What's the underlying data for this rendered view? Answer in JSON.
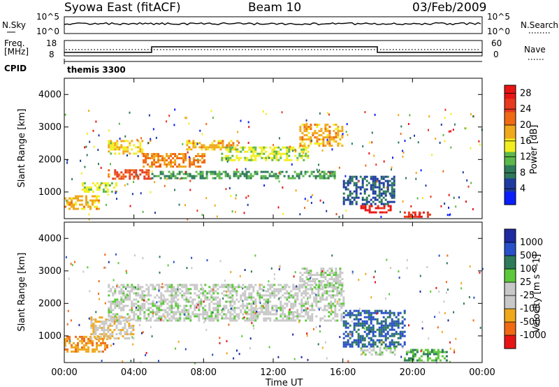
{
  "header": {
    "station": "Syowa East (fitACF)",
    "beam": "Beam 10",
    "date": "03/Feb/2009"
  },
  "noise_panel": {
    "left_label": "N.Sky",
    "right_label": "N.Search",
    "left_ticks": [
      "10^5",
      "10^0"
    ],
    "right_ticks": [
      "10^5",
      "10^0"
    ]
  },
  "freq_panel": {
    "left_label_1": "Freq.",
    "left_label_2": "[MHz]",
    "right_label": "Nave",
    "left_ticks": [
      "18",
      "8"
    ],
    "right_ticks": [
      "60",
      "0"
    ]
  },
  "cpid_panel": {
    "label": "CPID",
    "value": "themis 3300"
  },
  "colors": {
    "power": [
      "#0a1eff",
      "#1e3c9f",
      "#2e7a5a",
      "#5cb84a",
      "#f2ee1e",
      "#f0a81c",
      "#f06a14",
      "#e83a1e",
      "#e81414"
    ],
    "velocity": [
      "#e81414",
      "#f06a14",
      "#f0a81c",
      "#c8c8c8",
      "#c8c8c8",
      "#5cc83a",
      "#2e7a5a",
      "#2850c8",
      "#1e2aa0"
    ]
  },
  "chart_data": [
    {
      "type": "heatmap",
      "title": "",
      "xlabel": "Time UT",
      "ylabel": "Slant Range [km]",
      "xlim": [
        0,
        24
      ],
      "ylim": [
        180,
        4500
      ],
      "xticklabels": [
        "00:00",
        "04:00",
        "08:00",
        "12:00",
        "16:00",
        "20:00",
        "00:00"
      ],
      "yticks": [
        1000,
        2000,
        3000,
        4000
      ],
      "colorbar": {
        "label": "Power [dB]",
        "ticks": [
          "4",
          "8",
          "12",
          "16",
          "20",
          "24",
          "28"
        ],
        "range": [
          0,
          30
        ]
      },
      "echo_bands": [
        {
          "t0": 0.0,
          "t1": 2.0,
          "r0": 500,
          "r1": 900,
          "level": 18
        },
        {
          "t0": 1.0,
          "t1": 3.0,
          "r0": 1000,
          "r1": 1300,
          "level": 14
        },
        {
          "t0": 2.5,
          "t1": 5.0,
          "r0": 1400,
          "r1": 1700,
          "level": 24
        },
        {
          "t0": 2.5,
          "t1": 4.5,
          "r0": 2200,
          "r1": 2600,
          "level": 16
        },
        {
          "t0": 4.5,
          "t1": 8.0,
          "r0": 1800,
          "r1": 2200,
          "level": 20
        },
        {
          "t0": 5.0,
          "t1": 15.5,
          "r0": 1450,
          "r1": 1650,
          "level": 10
        },
        {
          "t0": 7.0,
          "t1": 10.0,
          "r0": 2300,
          "r1": 2600,
          "level": 18
        },
        {
          "t0": 9.0,
          "t1": 14.0,
          "r0": 2000,
          "r1": 2400,
          "level": 14
        },
        {
          "t0": 13.5,
          "t1": 16.0,
          "r0": 2400,
          "r1": 3100,
          "level": 18
        },
        {
          "t0": 16.0,
          "t1": 19.0,
          "r0": 600,
          "r1": 1500,
          "level": 6
        },
        {
          "t0": 17.0,
          "t1": 18.7,
          "r0": 400,
          "r1": 600,
          "level": 28
        },
        {
          "t0": 19.5,
          "t1": 21.0,
          "r0": 250,
          "r1": 400,
          "level": 26
        }
      ]
    },
    {
      "type": "heatmap",
      "title": "",
      "xlabel": "Time UT",
      "ylabel": "Slant Range [km]",
      "xlim": [
        0,
        24
      ],
      "ylim": [
        180,
        4500
      ],
      "xticklabels": [
        "00:00",
        "04:00",
        "08:00",
        "12:00",
        "16:00",
        "20:00",
        "00:00"
      ],
      "yticks": [
        1000,
        2000,
        3000,
        4000
      ],
      "colorbar": {
        "label": "Velocity [m s^-1]",
        "ticks": [
          "1000",
          "500",
          "100",
          "25",
          "-25",
          "-100",
          "-500",
          "-1000"
        ],
        "range": [
          -1000,
          1000
        ]
      },
      "echo_bands": [
        {
          "t0": 0.0,
          "t1": 2.5,
          "r0": 500,
          "r1": 1000,
          "level": -500
        },
        {
          "t0": 1.5,
          "t1": 4.0,
          "r0": 900,
          "r1": 1600,
          "level": -300
        },
        {
          "t0": 2.5,
          "t1": 16.0,
          "r0": 1450,
          "r1": 2600,
          "level": 0
        },
        {
          "t0": 13.5,
          "t1": 16.0,
          "r0": 2500,
          "r1": 3100,
          "level": 0
        },
        {
          "t0": 16.0,
          "t1": 19.5,
          "r0": 700,
          "r1": 1800,
          "level": 600
        },
        {
          "t0": 17.0,
          "t1": 19.0,
          "r0": 400,
          "r1": 650,
          "level": 100
        },
        {
          "t0": 19.5,
          "t1": 22.0,
          "r0": 250,
          "r1": 600,
          "level": 300
        }
      ]
    }
  ]
}
